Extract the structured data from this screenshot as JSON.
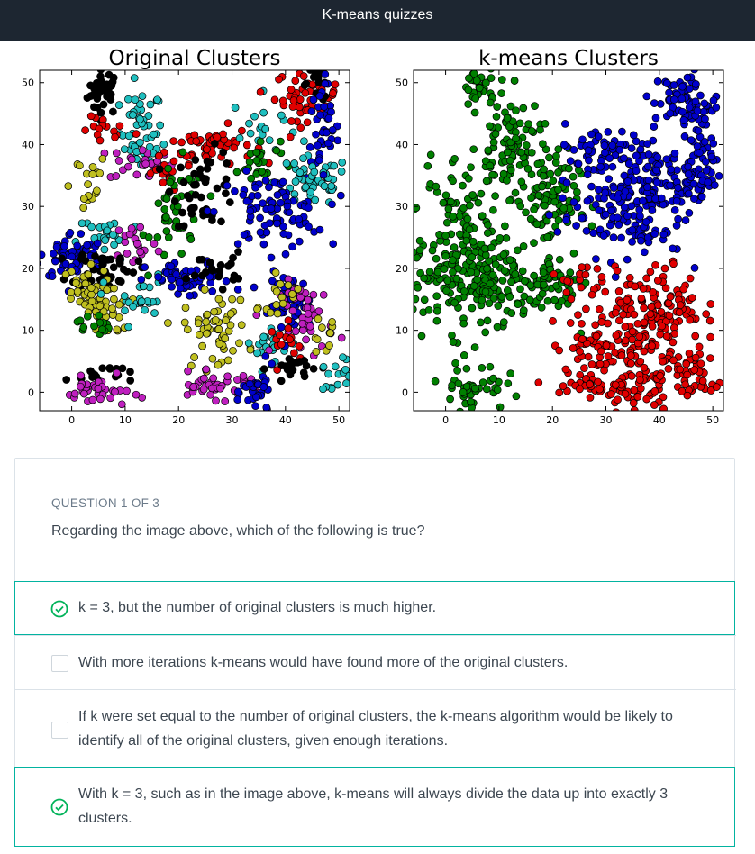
{
  "header": {
    "title": "K-means quizzes"
  },
  "figure": {
    "colors": {
      "blue": "#0000cc",
      "red": "#e00000",
      "green": "#008000",
      "cyan": "#1fbfbf",
      "magenta": "#bf1fbf",
      "yellow": "#bfbf1f",
      "black": "#000000"
    }
  },
  "chart_data": [
    {
      "type": "scatter",
      "title": "Original Clusters",
      "xlim": [
        -6,
        52
      ],
      "ylim": [
        -3,
        52
      ],
      "xticks": [
        0,
        10,
        20,
        30,
        40,
        50
      ],
      "yticks": [
        0,
        10,
        20,
        30,
        40,
        50
      ],
      "clusters": [
        {
          "color": "black",
          "center": [
            6,
            48.5
          ],
          "spread": [
            1.5,
            1.8
          ],
          "n": 35
        },
        {
          "color": "cyan",
          "center": [
            13,
            42
          ],
          "spread": [
            2,
            3.5
          ],
          "n": 50
        },
        {
          "color": "red",
          "center": [
            6,
            42
          ],
          "spread": [
            2,
            1.2
          ],
          "n": 14
        },
        {
          "color": "magenta",
          "center": [
            13,
            37
          ],
          "spread": [
            3,
            1.5
          ],
          "n": 25
        },
        {
          "color": "yellow",
          "center": [
            2,
            34
          ],
          "spread": [
            2.5,
            2.5
          ],
          "n": 18
        },
        {
          "color": "red",
          "center": [
            26,
            40
          ],
          "spread": [
            4,
            1.5
          ],
          "n": 55
        },
        {
          "color": "cyan",
          "center": [
            36,
            43
          ],
          "spread": [
            3,
            2.5
          ],
          "n": 18
        },
        {
          "color": "green",
          "center": [
            35,
            37
          ],
          "spread": [
            2,
            2
          ],
          "n": 25
        },
        {
          "color": "red",
          "center": [
            44,
            48
          ],
          "spread": [
            3,
            2
          ],
          "n": 50
        },
        {
          "color": "black",
          "center": [
            46,
            50
          ],
          "spread": [
            1.5,
            1.5
          ],
          "n": 15
        },
        {
          "color": "blue",
          "center": [
            47,
            42
          ],
          "spread": [
            1.5,
            4
          ],
          "n": 45
        },
        {
          "color": "cyan",
          "center": [
            45,
            34
          ],
          "spread": [
            3.5,
            2
          ],
          "n": 55
        },
        {
          "color": "red",
          "center": [
            17,
            35
          ],
          "spread": [
            1.5,
            1.5
          ],
          "n": 12
        },
        {
          "color": "green",
          "center": [
            20,
            29
          ],
          "spread": [
            2.5,
            4
          ],
          "n": 45
        },
        {
          "color": "black",
          "center": [
            25,
            33
          ],
          "spread": [
            3,
            3
          ],
          "n": 45
        },
        {
          "color": "blue",
          "center": [
            37,
            29
          ],
          "spread": [
            5,
            3
          ],
          "n": 90
        },
        {
          "color": "cyan",
          "center": [
            7,
            25
          ],
          "spread": [
            3,
            2
          ],
          "n": 25
        },
        {
          "color": "magenta",
          "center": [
            12,
            24
          ],
          "spread": [
            2,
            2
          ],
          "n": 20
        },
        {
          "color": "blue",
          "center": [
            0,
            22
          ],
          "spread": [
            3,
            2
          ],
          "n": 60
        },
        {
          "color": "black",
          "center": [
            6,
            20
          ],
          "spread": [
            3,
            1.5
          ],
          "n": 45
        },
        {
          "color": "yellow",
          "center": [
            2,
            16
          ],
          "spread": [
            2.5,
            2
          ],
          "n": 40
        },
        {
          "color": "yellow",
          "center": [
            7,
            13
          ],
          "spread": [
            2,
            2
          ],
          "n": 25
        },
        {
          "color": "green",
          "center": [
            4,
            11
          ],
          "spread": [
            1.5,
            1
          ],
          "n": 15
        },
        {
          "color": "cyan",
          "center": [
            12,
            15
          ],
          "spread": [
            3,
            2
          ],
          "n": 25
        },
        {
          "color": "blue",
          "center": [
            22,
            18
          ],
          "spread": [
            4,
            1.5
          ],
          "n": 55
        },
        {
          "color": "black",
          "center": [
            27,
            20
          ],
          "spread": [
            2.5,
            1.3
          ],
          "n": 20
        },
        {
          "color": "yellow",
          "center": [
            27,
            10
          ],
          "spread": [
            3,
            3
          ],
          "n": 55
        },
        {
          "color": "cyan",
          "center": [
            37,
            8
          ],
          "spread": [
            3,
            1.5
          ],
          "n": 22
        },
        {
          "color": "blue",
          "center": [
            41,
            14
          ],
          "spread": [
            2,
            2.5
          ],
          "n": 45
        },
        {
          "color": "magenta",
          "center": [
            44,
            12
          ],
          "spread": [
            2.5,
            3
          ],
          "n": 45
        },
        {
          "color": "yellow",
          "center": [
            39,
            16
          ],
          "spread": [
            2,
            1.5
          ],
          "n": 15
        },
        {
          "color": "yellow",
          "center": [
            47,
            9
          ],
          "spread": [
            1.5,
            1.5
          ],
          "n": 10
        },
        {
          "color": "red",
          "center": [
            41,
            8
          ],
          "spread": [
            2,
            1.5
          ],
          "n": 15
        },
        {
          "color": "black",
          "center": [
            42,
            4
          ],
          "spread": [
            2.5,
            1
          ],
          "n": 22
        },
        {
          "color": "cyan",
          "center": [
            49,
            2
          ],
          "spread": [
            1.5,
            2.5
          ],
          "n": 18
        },
        {
          "color": "black",
          "center": [
            5,
            3
          ],
          "spread": [
            3,
            0.8
          ],
          "n": 18
        },
        {
          "color": "magenta",
          "center": [
            5,
            0
          ],
          "spread": [
            3,
            1.2
          ],
          "n": 35
        },
        {
          "color": "magenta",
          "center": [
            27,
            1
          ],
          "spread": [
            4.5,
            1
          ],
          "n": 40
        },
        {
          "color": "blue",
          "center": [
            35,
            0
          ],
          "spread": [
            1.5,
            2
          ],
          "n": 30
        }
      ]
    },
    {
      "type": "scatter",
      "title": "k-means Clusters",
      "xlim": [
        -6,
        52
      ],
      "ylim": [
        -3,
        52
      ],
      "xticks": [
        0,
        10,
        20,
        30,
        40,
        50
      ],
      "yticks": [
        0,
        10,
        20,
        30,
        40,
        50
      ],
      "clusters": [
        {
          "color": "green",
          "center": [
            6,
            49
          ],
          "spread": [
            1.5,
            1.8
          ],
          "n": 30
        },
        {
          "color": "green",
          "center": [
            12,
            40
          ],
          "spread": [
            3,
            4
          ],
          "n": 90
        },
        {
          "color": "green",
          "center": [
            2,
            33
          ],
          "spread": [
            3,
            3
          ],
          "n": 35
        },
        {
          "color": "green",
          "center": [
            19,
            31
          ],
          "spread": [
            3,
            4
          ],
          "n": 90
        },
        {
          "color": "green",
          "center": [
            4,
            20
          ],
          "spread": [
            5,
            5
          ],
          "n": 220
        },
        {
          "color": "green",
          "center": [
            14,
            16
          ],
          "spread": [
            4,
            3
          ],
          "n": 40
        },
        {
          "color": "green",
          "center": [
            21,
            18
          ],
          "spread": [
            3,
            2
          ],
          "n": 50
        },
        {
          "color": "green",
          "center": [
            5,
            1
          ],
          "spread": [
            3,
            2
          ],
          "n": 45
        },
        {
          "color": "blue",
          "center": [
            28,
            39
          ],
          "spread": [
            4,
            2
          ],
          "n": 55
        },
        {
          "color": "blue",
          "center": [
            37,
            36
          ],
          "spread": [
            3,
            2.5
          ],
          "n": 50
        },
        {
          "color": "blue",
          "center": [
            45,
            47
          ],
          "spread": [
            3,
            2.5
          ],
          "n": 65
        },
        {
          "color": "blue",
          "center": [
            47,
            40
          ],
          "spread": [
            1.5,
            4
          ],
          "n": 50
        },
        {
          "color": "blue",
          "center": [
            45,
            34
          ],
          "spread": [
            3.5,
            2
          ],
          "n": 55
        },
        {
          "color": "blue",
          "center": [
            33,
            29
          ],
          "spread": [
            6,
            3.5
          ],
          "n": 140
        },
        {
          "color": "red",
          "center": [
            40,
            14
          ],
          "spread": [
            4,
            3
          ],
          "n": 120
        },
        {
          "color": "red",
          "center": [
            32,
            8
          ],
          "spread": [
            6,
            2.5
          ],
          "n": 100
        },
        {
          "color": "red",
          "center": [
            25,
            18
          ],
          "spread": [
            2,
            1.5
          ],
          "n": 20
        },
        {
          "color": "red",
          "center": [
            36,
            1
          ],
          "spread": [
            3,
            2
          ],
          "n": 50
        },
        {
          "color": "red",
          "center": [
            27,
            1
          ],
          "spread": [
            4,
            1
          ],
          "n": 35
        },
        {
          "color": "red",
          "center": [
            48,
            2
          ],
          "spread": [
            2,
            2
          ],
          "n": 30
        },
        {
          "color": "red",
          "center": [
            43,
            5
          ],
          "spread": [
            3,
            1.2
          ],
          "n": 20
        }
      ]
    }
  ],
  "quiz": {
    "question_label": "QUESTION 1 OF 3",
    "question_text": "Regarding the image above, which of the following is true?",
    "options": [
      {
        "text": "k = 3, but the number of original clusters is much higher.",
        "correct": true
      },
      {
        "text": "With more iterations k-means would have found more of the original clusters.",
        "correct": false
      },
      {
        "text": "If k were set equal to the number of original clusters, the k-means algorithm would be likely to identify all of the original clusters, given enough iterations.",
        "correct": false
      },
      {
        "text": "With k = 3, such as in the image above, k-means will always divide the data up into exactly 3 clusters.",
        "correct": true
      }
    ]
  }
}
